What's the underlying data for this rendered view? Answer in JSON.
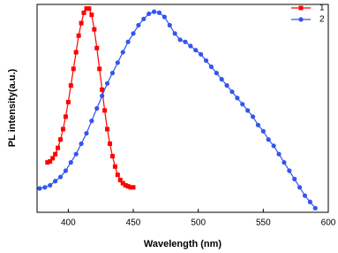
{
  "chart_data": {
    "type": "line",
    "xlabel": "Wavelength (nm)",
    "ylabel": "PL intensity(a.u.)",
    "xlim": [
      376,
      600
    ],
    "xticks": [
      400,
      450,
      500,
      550,
      600
    ],
    "ylim": [
      0,
      1
    ],
    "legend": "upper-right",
    "series": [
      {
        "name": "1",
        "color": "#ff0000",
        "marker": "square",
        "x": [
          384,
          386,
          388,
          390,
          392,
          394,
          396,
          398,
          400,
          402,
          404,
          406,
          408,
          410,
          412,
          414,
          416,
          418,
          420,
          422,
          424,
          426,
          428,
          430,
          432,
          434,
          436,
          438,
          440,
          442,
          444,
          446,
          448,
          450
        ],
        "values": [
          0.24,
          0.245,
          0.26,
          0.28,
          0.31,
          0.35,
          0.4,
          0.46,
          0.53,
          0.61,
          0.69,
          0.77,
          0.85,
          0.91,
          0.96,
          0.98,
          0.98,
          0.95,
          0.88,
          0.79,
          0.69,
          0.59,
          0.49,
          0.4,
          0.33,
          0.27,
          0.22,
          0.18,
          0.155,
          0.14,
          0.13,
          0.125,
          0.12,
          0.12
        ]
      },
      {
        "name": "2",
        "color": "#3355ee",
        "marker": "circle",
        "x": [
          378,
          382,
          386,
          390,
          394,
          398,
          402,
          406,
          410,
          414,
          418,
          422,
          426,
          430,
          434,
          438,
          442,
          446,
          450,
          454,
          458,
          462,
          466,
          470,
          474,
          478,
          482,
          486,
          490,
          494,
          498,
          502,
          506,
          510,
          514,
          518,
          522,
          526,
          530,
          534,
          538,
          542,
          546,
          550,
          554,
          558,
          562,
          566,
          570,
          574,
          578,
          582,
          586,
          590
        ],
        "values": [
          0.115,
          0.12,
          0.13,
          0.15,
          0.17,
          0.2,
          0.24,
          0.28,
          0.33,
          0.38,
          0.44,
          0.5,
          0.56,
          0.62,
          0.67,
          0.72,
          0.77,
          0.82,
          0.86,
          0.9,
          0.93,
          0.955,
          0.965,
          0.96,
          0.94,
          0.9,
          0.86,
          0.83,
          0.82,
          0.8,
          0.78,
          0.76,
          0.73,
          0.7,
          0.67,
          0.64,
          0.61,
          0.58,
          0.55,
          0.52,
          0.49,
          0.46,
          0.42,
          0.39,
          0.35,
          0.32,
          0.28,
          0.24,
          0.2,
          0.16,
          0.12,
          0.08,
          0.05,
          0.02
        ]
      }
    ]
  }
}
